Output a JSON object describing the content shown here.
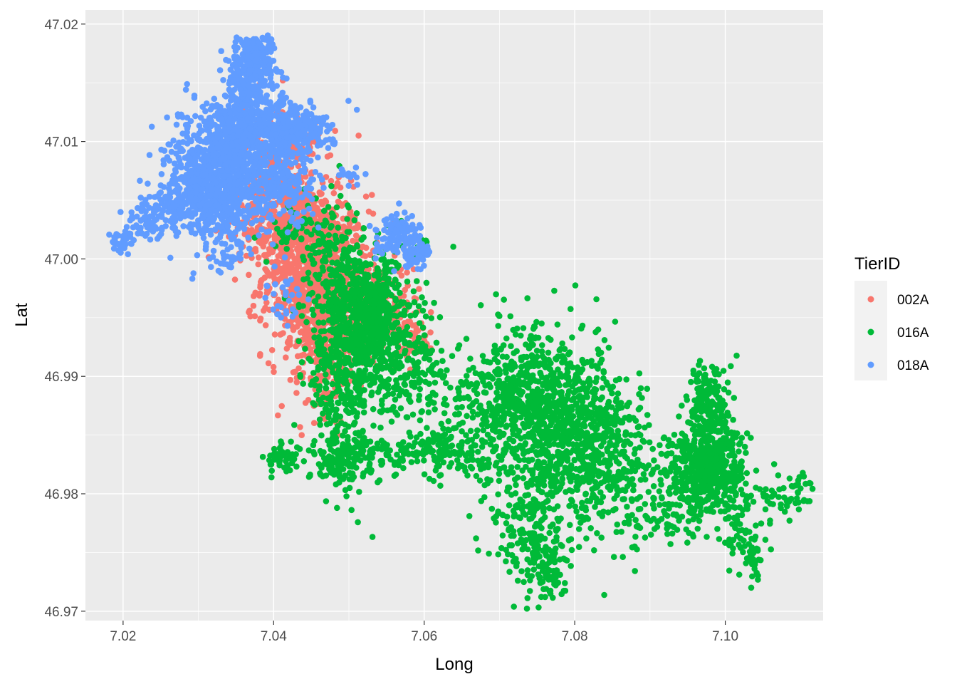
{
  "chart_data": {
    "type": "scatter",
    "title": "",
    "xlabel": "Long",
    "ylabel": "Lat",
    "xlim": [
      7.015,
      7.113
    ],
    "ylim": [
      46.9692,
      47.0212
    ],
    "x_ticks": [
      7.02,
      7.04,
      7.06,
      7.08,
      7.1
    ],
    "x_tick_labels": [
      "7.02",
      "7.04",
      "7.06",
      "7.08",
      "7.10"
    ],
    "y_ticks": [
      46.97,
      46.98,
      46.99,
      47.0,
      47.01,
      47.02
    ],
    "y_tick_labels": [
      "46.97",
      "46.98",
      "46.99",
      "47.00",
      "47.01",
      "47.02"
    ],
    "grid": true,
    "panel_background": "#EBEBEB",
    "grid_color": "#FFFFFF",
    "legend": {
      "title": "TierID",
      "position": "right",
      "entries": [
        {
          "label": "002A",
          "color": "#F8766D"
        },
        {
          "label": "016A",
          "color": "#00BA38"
        },
        {
          "label": "018A",
          "color": "#619CFF"
        }
      ]
    },
    "series": [
      {
        "name": "002A",
        "color": "#F8766D",
        "clusters": [
          {
            "cx": 7.0455,
            "cy": 46.9985,
            "sx": 0.0035,
            "sy": 0.0035,
            "n": 900
          },
          {
            "cx": 7.042,
            "cy": 47.003,
            "sx": 0.0035,
            "sy": 0.002,
            "n": 350
          },
          {
            "cx": 7.047,
            "cy": 46.993,
            "sx": 0.002,
            "sy": 0.003,
            "n": 300
          },
          {
            "cx": 7.0545,
            "cy": 46.9955,
            "sx": 0.0025,
            "sy": 0.002,
            "n": 200
          },
          {
            "cx": 7.041,
            "cy": 47.008,
            "sx": 0.0025,
            "sy": 0.0025,
            "n": 200
          },
          {
            "cx": 7.059,
            "cy": 46.993,
            "sx": 0.0008,
            "sy": 0.0008,
            "n": 30
          }
        ]
      },
      {
        "name": "016A",
        "color": "#00BA38",
        "clusters": [
          {
            "cx": 7.053,
            "cy": 46.9945,
            "sx": 0.003,
            "sy": 0.003,
            "n": 700
          },
          {
            "cx": 7.049,
            "cy": 46.99,
            "sx": 0.0025,
            "sy": 0.004,
            "n": 300
          },
          {
            "cx": 7.048,
            "cy": 46.999,
            "sx": 0.002,
            "sy": 0.003,
            "n": 150
          },
          {
            "cx": 7.058,
            "cy": 46.99,
            "sx": 0.0025,
            "sy": 0.002,
            "n": 100
          },
          {
            "cx": 7.056,
            "cy": 46.9835,
            "sx": 0.006,
            "sy": 0.0008,
            "n": 160
          },
          {
            "cx": 7.062,
            "cy": 46.984,
            "sx": 0.0025,
            "sy": 0.001,
            "n": 70
          },
          {
            "cx": 7.049,
            "cy": 46.9825,
            "sx": 0.002,
            "sy": 0.0012,
            "n": 80
          },
          {
            "cx": 7.041,
            "cy": 46.983,
            "sx": 0.001,
            "sy": 0.0006,
            "n": 40
          },
          {
            "cx": 7.0655,
            "cy": 46.988,
            "sx": 0.003,
            "sy": 0.0025,
            "n": 80
          },
          {
            "cx": 7.072,
            "cy": 46.987,
            "sx": 0.0035,
            "sy": 0.003,
            "n": 350
          },
          {
            "cx": 7.08,
            "cy": 46.985,
            "sx": 0.004,
            "sy": 0.0035,
            "n": 700
          },
          {
            "cx": 7.075,
            "cy": 46.99,
            "sx": 0.003,
            "sy": 0.003,
            "n": 150
          },
          {
            "cx": 7.074,
            "cy": 46.977,
            "sx": 0.0025,
            "sy": 0.0035,
            "n": 200
          },
          {
            "cx": 7.077,
            "cy": 46.9735,
            "sx": 0.001,
            "sy": 0.0012,
            "n": 60
          },
          {
            "cx": 7.086,
            "cy": 46.982,
            "sx": 0.003,
            "sy": 0.003,
            "n": 150
          },
          {
            "cx": 7.092,
            "cy": 46.979,
            "sx": 0.002,
            "sy": 0.0015,
            "n": 60
          },
          {
            "cx": 7.0975,
            "cy": 46.982,
            "sx": 0.0025,
            "sy": 0.0018,
            "n": 550
          },
          {
            "cx": 7.098,
            "cy": 46.9875,
            "sx": 0.0015,
            "sy": 0.002,
            "n": 180
          },
          {
            "cx": 7.102,
            "cy": 46.977,
            "sx": 0.0015,
            "sy": 0.002,
            "n": 60
          },
          {
            "cx": 7.104,
            "cy": 46.974,
            "sx": 0.0008,
            "sy": 0.0012,
            "n": 25
          },
          {
            "cx": 7.107,
            "cy": 46.9795,
            "sx": 0.0012,
            "sy": 0.0008,
            "n": 30
          },
          {
            "cx": 7.11,
            "cy": 46.98,
            "sx": 0.001,
            "sy": 0.001,
            "n": 25
          },
          {
            "cx": 7.044,
            "cy": 47.002,
            "sx": 0.0025,
            "sy": 0.0012,
            "n": 60
          },
          {
            "cx": 7.06,
            "cy": 47.001,
            "sx": 0.0005,
            "sy": 0.0004,
            "n": 10
          }
        ]
      },
      {
        "name": "018A",
        "color": "#619CFF",
        "clusters": [
          {
            "cx": 7.032,
            "cy": 47.0065,
            "sx": 0.003,
            "sy": 0.0025,
            "n": 900
          },
          {
            "cx": 7.037,
            "cy": 47.011,
            "sx": 0.003,
            "sy": 0.002,
            "n": 500
          },
          {
            "cx": 7.037,
            "cy": 47.016,
            "sx": 0.0015,
            "sy": 0.0015,
            "n": 250
          },
          {
            "cx": 7.038,
            "cy": 47.018,
            "sx": 0.001,
            "sy": 0.0005,
            "n": 50
          },
          {
            "cx": 7.043,
            "cy": 47.011,
            "sx": 0.0025,
            "sy": 0.001,
            "n": 200
          },
          {
            "cx": 7.041,
            "cy": 47.006,
            "sx": 0.0025,
            "sy": 0.0015,
            "n": 200
          },
          {
            "cx": 7.0265,
            "cy": 47.0045,
            "sx": 0.0015,
            "sy": 0.0006,
            "n": 60
          },
          {
            "cx": 7.023,
            "cy": 47.003,
            "sx": 0.0015,
            "sy": 0.0008,
            "n": 60
          },
          {
            "cx": 7.02,
            "cy": 47.0012,
            "sx": 0.0008,
            "sy": 0.0005,
            "n": 30
          },
          {
            "cx": 7.0565,
            "cy": 47.002,
            "sx": 0.0015,
            "sy": 0.001,
            "n": 120
          },
          {
            "cx": 7.059,
            "cy": 47.0005,
            "sx": 0.001,
            "sy": 0.0006,
            "n": 60
          },
          {
            "cx": 7.034,
            "cy": 47.0005,
            "sx": 0.001,
            "sy": 0.0008,
            "n": 30
          },
          {
            "cx": 7.0415,
            "cy": 46.997,
            "sx": 0.0012,
            "sy": 0.001,
            "n": 30
          },
          {
            "cx": 7.05,
            "cy": 47.007,
            "sx": 0.0008,
            "sy": 0.0005,
            "n": 15
          }
        ]
      }
    ]
  }
}
